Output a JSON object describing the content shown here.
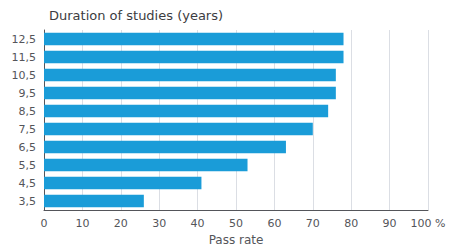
{
  "chart_data": {
    "type": "bar",
    "orientation": "horizontal",
    "title": "Duration of studies (years)",
    "xlabel": "Pass rate",
    "categories": [
      "12,5",
      "11,5",
      "10,5",
      "9,5",
      "8,5",
      "7,5",
      "6,5",
      "5,5",
      "4,5",
      "3,5"
    ],
    "values": [
      78,
      78,
      76,
      76,
      74,
      70,
      63,
      53,
      41,
      26
    ],
    "color": "#1a9cd8",
    "xlim": [
      0,
      100
    ],
    "xticks": [
      0,
      10,
      20,
      30,
      40,
      50,
      60,
      70,
      80,
      90,
      {
        "value": 100,
        "label": "100 %"
      }
    ],
    "grid": true
  }
}
